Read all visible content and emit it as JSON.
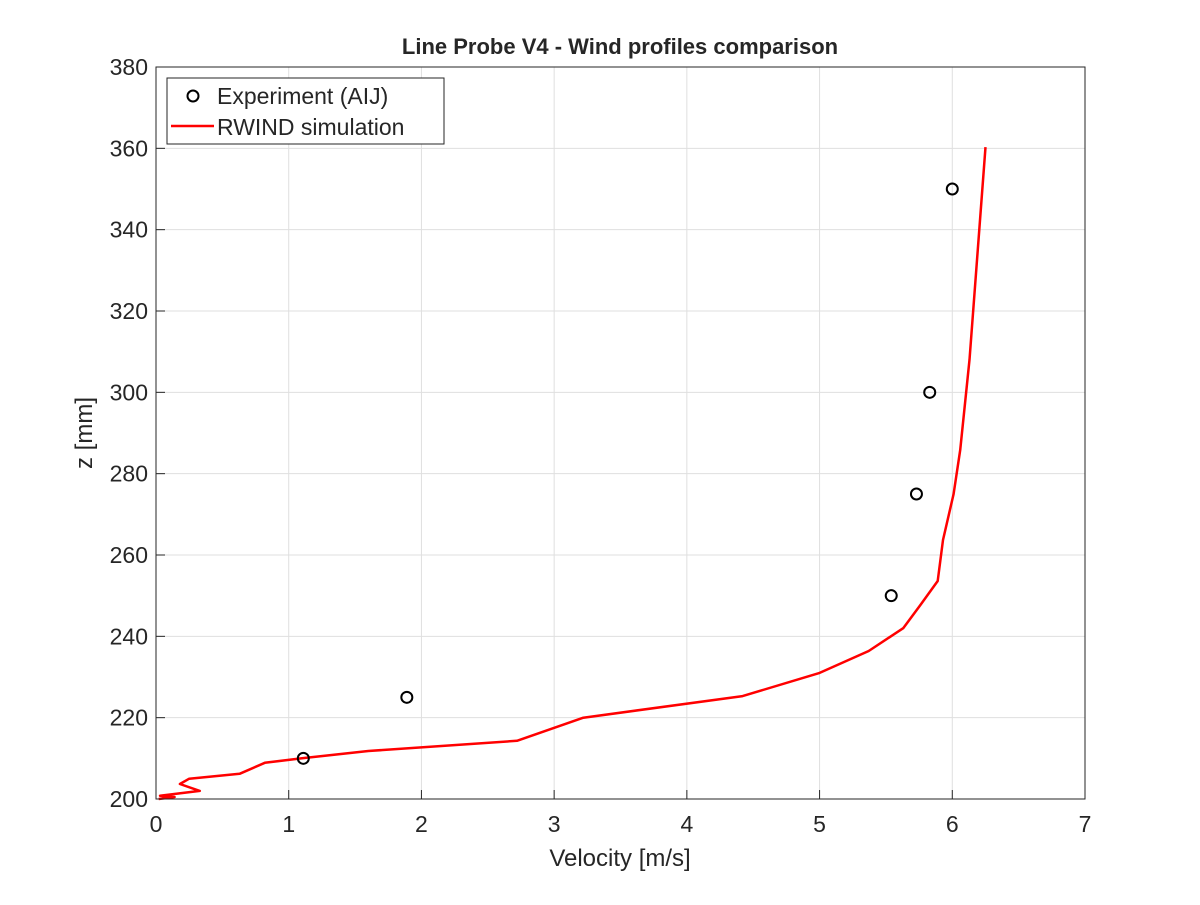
{
  "chart_data": {
    "type": "line",
    "title": "Line Probe V4 - Wind profiles comparison",
    "xlabel": "Velocity [m/s]",
    "ylabel": "z [mm]",
    "xlim": [
      0,
      7
    ],
    "ylim": [
      200,
      380
    ],
    "xticks": [
      0,
      1,
      2,
      3,
      4,
      5,
      6,
      7
    ],
    "yticks": [
      200,
      220,
      240,
      260,
      280,
      300,
      320,
      340,
      360,
      380
    ],
    "grid": true,
    "legend_position": "top-left",
    "series": [
      {
        "name": "Experiment (AIJ)",
        "style": "markers",
        "marker": "circle",
        "color": "#000000",
        "x": [
          1.11,
          1.89,
          5.54,
          5.73,
          5.83,
          6.0
        ],
        "y": [
          210,
          225,
          250,
          275,
          300,
          350
        ]
      },
      {
        "name": "RWIND simulation",
        "style": "line",
        "color": "#ff0000",
        "x": [
          0.02,
          0.14,
          0.03,
          0.33,
          0.18,
          0.25,
          0.63,
          0.82,
          1.1,
          1.6,
          2.72,
          3.22,
          4.42,
          5.0,
          5.37,
          5.63,
          5.76,
          5.89,
          5.93,
          6.01,
          6.06,
          6.13,
          6.25
        ],
        "y": [
          200,
          200.5,
          200.8,
          202,
          203.7,
          205,
          206.2,
          208.9,
          210,
          211.8,
          214.3,
          220,
          225.3,
          231,
          236.4,
          242,
          247.7,
          253.6,
          263.7,
          275,
          285.8,
          308,
          360.3
        ]
      }
    ]
  }
}
